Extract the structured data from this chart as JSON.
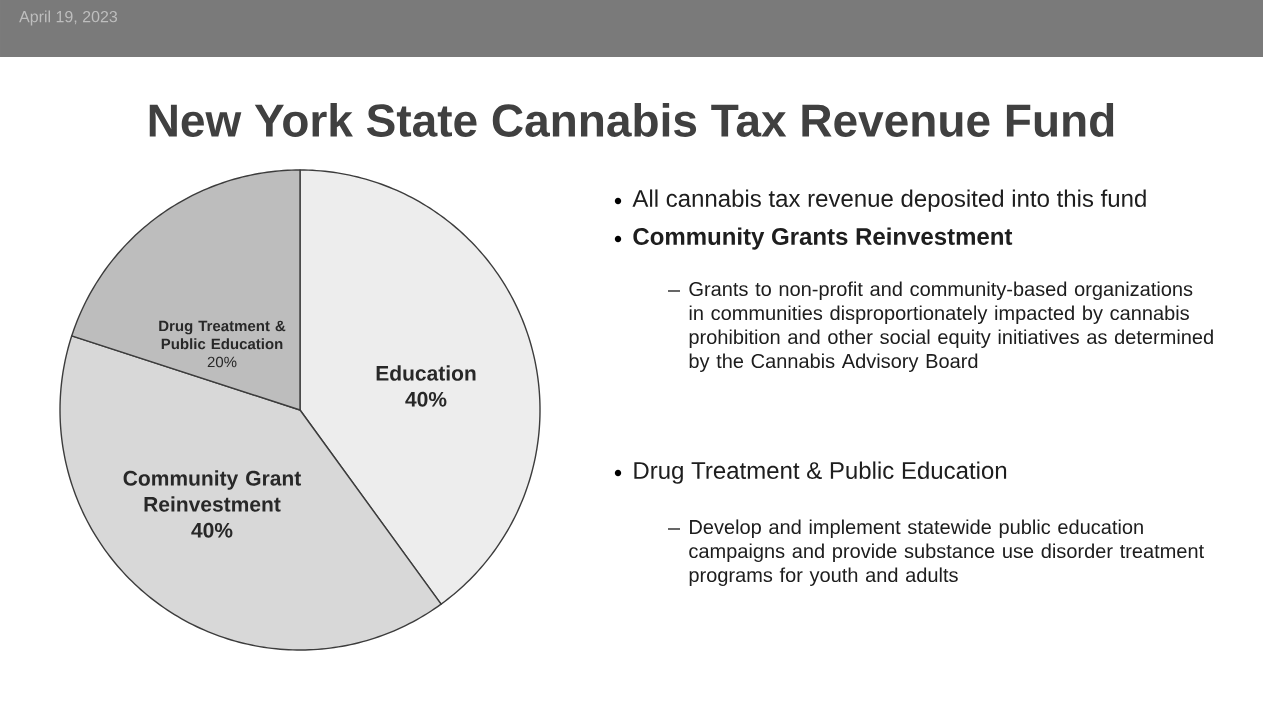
{
  "chart_data": {
    "type": "pie",
    "title": "New York State Cannabis Tax Revenue Fund",
    "subtitle": "April 19, 2023",
    "categories": [
      "Education",
      "Community Grant Reinvestment",
      "Drug Treatment & Public Education"
    ],
    "values": [
      40,
      40,
      20
    ],
    "value_labels": [
      "40%",
      "40%",
      "20%"
    ],
    "colors": [
      "#ededed",
      "#d8d8d8",
      "#bdbdbd"
    ],
    "annotations": [
      "All cannabis tax revenue deposited into this fund",
      "Community Grants Reinvestment",
      "Grants to non-profit and community-based organizations in communities disproportionately impacted by cannabis prohibition and other social equity initiatives as determined by the Cannabis Advisory Board",
      "Drug Treatment & Public Education",
      "Develop and implement statewide public education campaigns and provide substance use disorder treatment programs for youth and adults"
    ]
  }
}
